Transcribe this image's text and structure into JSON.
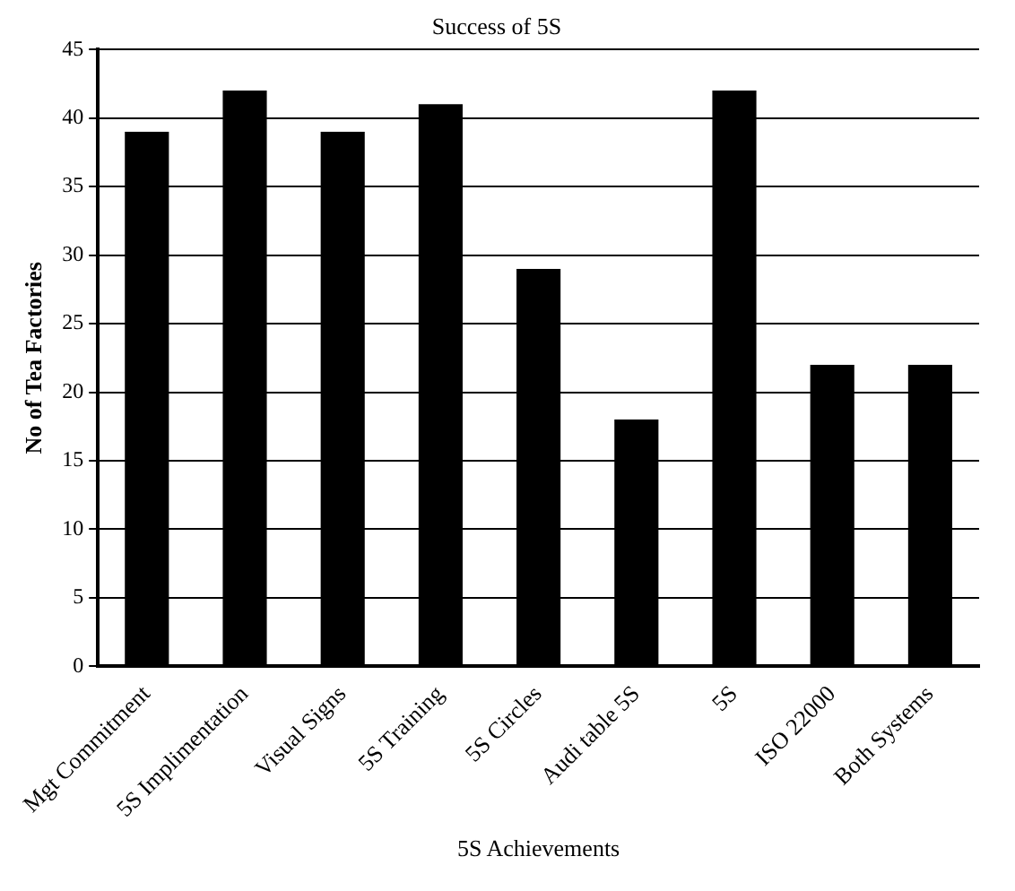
{
  "chart_data": {
    "type": "bar",
    "title": "Success of 5S",
    "xlabel": "5S Achievements",
    "ylabel": "No of Tea Factories",
    "categories": [
      "Mgt Commitment",
      "5S Implimentation",
      "Visual Signs",
      "5S Training",
      "5S Circles",
      "Audi table 5S",
      "5S",
      "ISO 22000",
      "Both Systems"
    ],
    "values": [
      39,
      42,
      39,
      41,
      29,
      18,
      42,
      22,
      22
    ],
    "color": "#000000",
    "ylim": [
      0,
      45
    ],
    "yticks": [
      0,
      5,
      10,
      15,
      20,
      25,
      30,
      35,
      40,
      45
    ],
    "grid": "y",
    "legend": false
  }
}
